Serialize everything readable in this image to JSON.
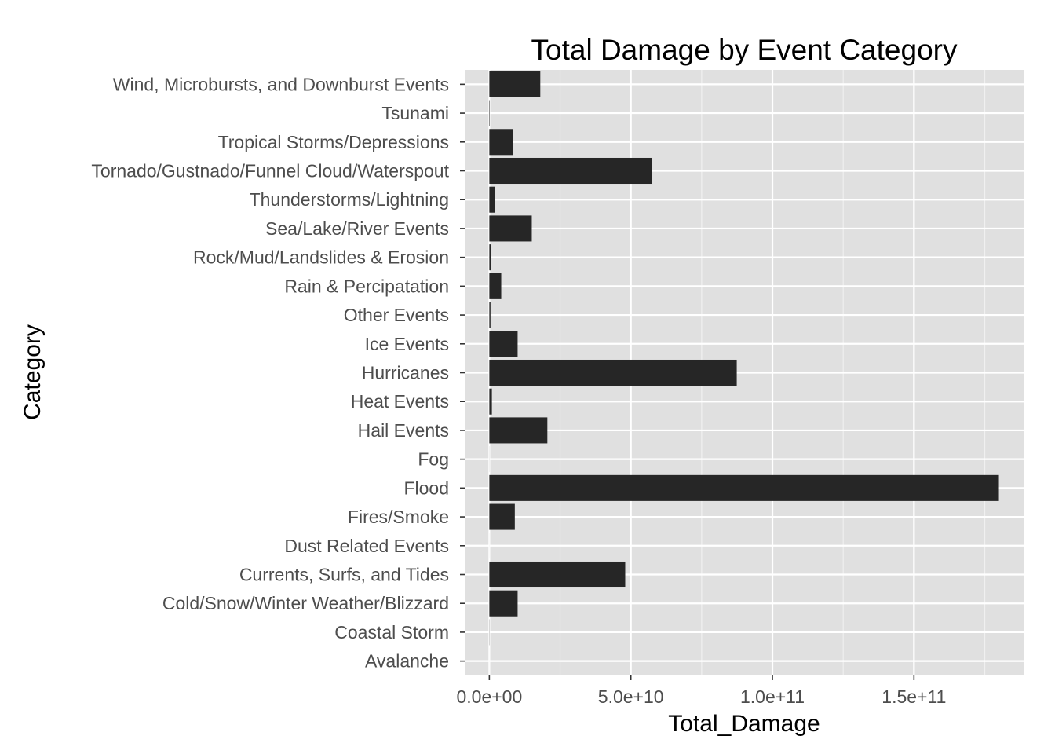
{
  "chart_data": {
    "type": "bar",
    "orientation": "horizontal",
    "title": "Total Damage by Event Category",
    "xlabel": "Total_Damage",
    "ylabel": "Category",
    "xlim": [
      -8700000000.0,
      189000000000.0
    ],
    "xticks": [
      0,
      50000000000.0,
      100000000000.0,
      150000000000.0
    ],
    "xtick_labels": [
      "0.0e+00",
      "5.0e+10",
      "1.0e+11",
      "1.5e+11"
    ],
    "grid": true,
    "legend": "none",
    "colors": {
      "panel": "#e0e0e0",
      "grid_major": "#ffffff",
      "grid_minor": "#f0f0f0",
      "bar": "#262626",
      "tick_text": "#4d4d4d",
      "tick_mark": "#333333"
    },
    "categories": [
      "Avalanche",
      "Coastal Storm",
      "Cold/Snow/Winter Weather/Blizzard",
      "Currents, Surfs, and Tides",
      "Dust Related Events",
      "Fires/Smoke",
      "Flood",
      "Fog",
      "Hail Events",
      "Heat Events",
      "Hurricanes",
      "Ice Events",
      "Other Events",
      "Rain & Percipatation",
      "Rock/Mud/Landslides & Erosion",
      "Sea/Lake/River Events",
      "Thunderstorms/Lightning",
      "Tornado/Gustnado/Funnel Cloud/Waterspout",
      "Tropical Storms/Depressions",
      "Tsunami",
      "Wind, Microbursts, and Downburst Events"
    ],
    "values": [
      4000000.0,
      50000000.0,
      10000000000.0,
      48000000000.0,
      6000000.0,
      9000000000.0,
      180000000000.0,
      20000000.0,
      20500000000.0,
      900000000.0,
      87400000000.0,
      10000000000.0,
      400000000.0,
      4200000000.0,
      500000000.0,
      15000000000.0,
      2000000000.0,
      57500000000.0,
      8300000000.0,
      140000000.0,
      18000000000.0
    ]
  }
}
